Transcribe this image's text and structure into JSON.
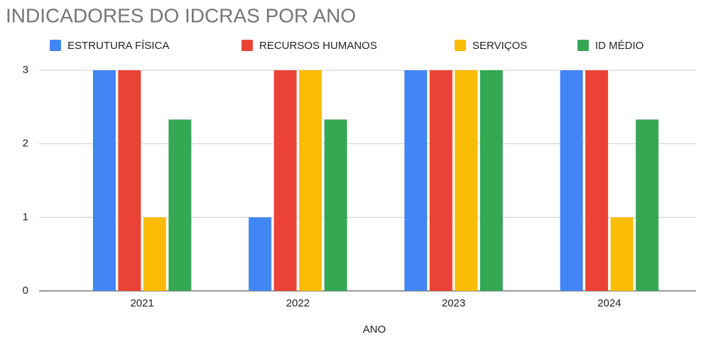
{
  "chart_data": {
    "type": "bar",
    "title": "INDICADORES DO IDCRAS POR ANO",
    "x_label": "ANO",
    "categories": [
      "2021",
      "2022",
      "2023",
      "2024"
    ],
    "series": [
      {
        "name": "ESTRUTURA FÍSICA",
        "color": "#4285f4",
        "values": [
          3,
          1,
          3,
          3
        ]
      },
      {
        "name": "RECURSOS HUMANOS",
        "color": "#ea4335",
        "values": [
          3,
          3,
          3,
          3
        ]
      },
      {
        "name": "SERVIÇOS",
        "color": "#fbbc04",
        "values": [
          1,
          3,
          3,
          1
        ]
      },
      {
        "name": "ID MÉDIO",
        "color": "#34a853",
        "values": [
          2.33,
          2.33,
          3,
          2.33
        ]
      }
    ],
    "ylim": [
      0,
      3
    ],
    "yticks": [
      0,
      1,
      2,
      3
    ],
    "grid": true,
    "legend": "top"
  }
}
